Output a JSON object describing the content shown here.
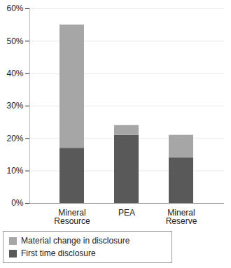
{
  "chart_data": {
    "type": "bar",
    "stacked": true,
    "grid": true,
    "legend": "bottom",
    "categories": [
      "Mineral Resource",
      "PEA",
      "Mineral Reserve"
    ],
    "series": [
      {
        "name": "First time disclosure",
        "color": "#595959",
        "values": [
          17,
          21,
          14
        ]
      },
      {
        "name": "Material change in disclosure",
        "color": "#a6a6a6",
        "values": [
          38,
          3,
          7
        ]
      }
    ],
    "ylim": [
      0,
      60
    ],
    "yticks": [
      {
        "value": 0,
        "label": "0%"
      },
      {
        "value": 10,
        "label": "10%"
      },
      {
        "value": 20,
        "label": "20%"
      },
      {
        "value": 30,
        "label": "30%"
      },
      {
        "value": 40,
        "label": "40%"
      },
      {
        "value": 50,
        "label": "50%"
      },
      {
        "value": 60,
        "label": "60%"
      }
    ]
  }
}
